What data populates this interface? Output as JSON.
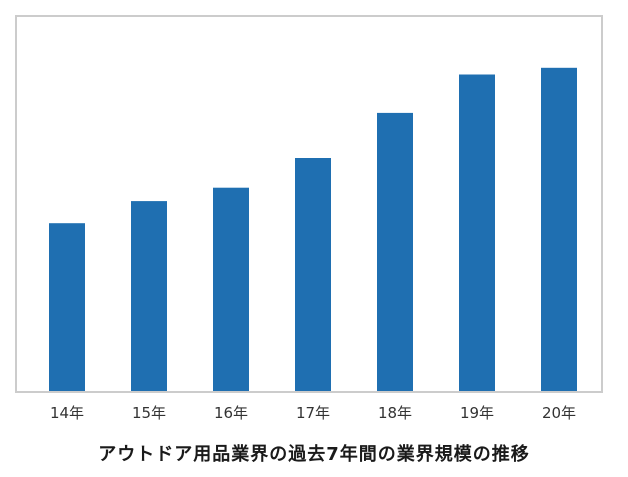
{
  "chart_data": {
    "type": "bar",
    "title": "アウトドア用品業界の過去7年間の業界規模の推移",
    "categories": [
      "14年",
      "15年",
      "16年",
      "17年",
      "18年",
      "19年",
      "20年"
    ],
    "values": [
      175,
      198,
      212,
      243,
      290,
      330,
      337
    ],
    "ylim": [
      0,
      390
    ],
    "xlabel": "",
    "ylabel": "",
    "grid": false,
    "legend": "none",
    "bar_color": "#1f6fb1"
  }
}
